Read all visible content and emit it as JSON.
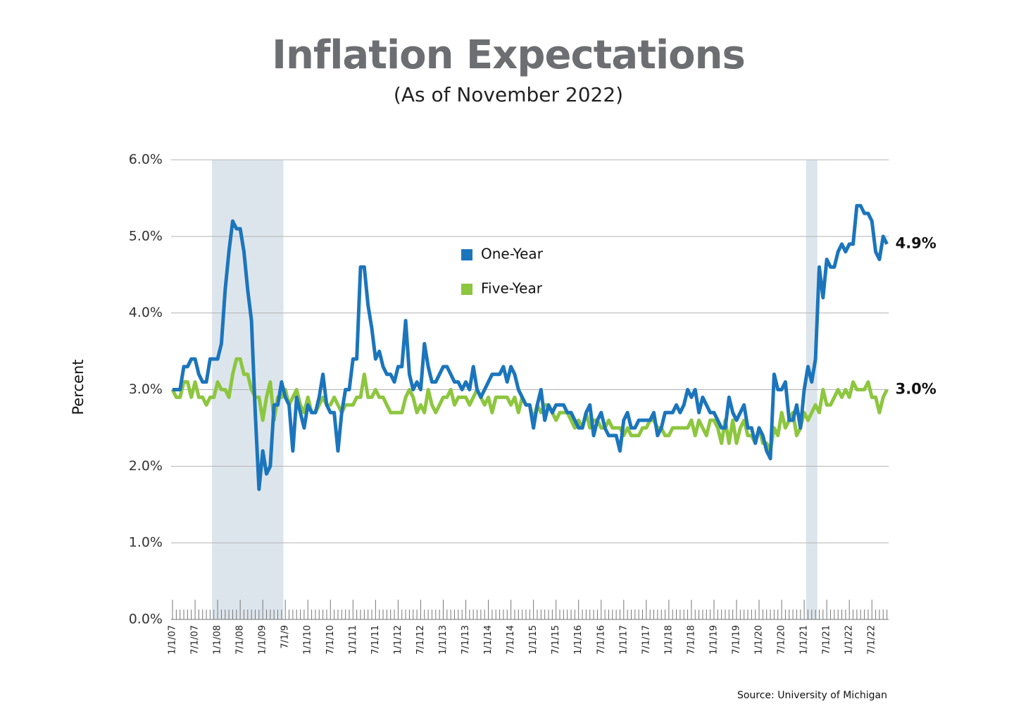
{
  "chart_data": {
    "type": "line",
    "title": "Inflation Expectations",
    "subtitle": "(As of November 2022)",
    "y_label": "Percent",
    "source": "Source: University of Michigan",
    "categories": [
      "1/1/07",
      null,
      null,
      null,
      null,
      null,
      "7/1/07",
      null,
      null,
      null,
      null,
      null,
      "1/1/08",
      null,
      null,
      null,
      null,
      null,
      "7/1/08",
      null,
      null,
      null,
      null,
      null,
      "1/1/09",
      null,
      null,
      null,
      null,
      null,
      "7/1/9",
      null,
      null,
      null,
      null,
      null,
      "1/1/10",
      null,
      null,
      null,
      null,
      null,
      "7/1/10",
      null,
      null,
      null,
      null,
      null,
      "1/1/11",
      null,
      null,
      null,
      null,
      null,
      "7/1/11",
      null,
      null,
      null,
      null,
      null,
      "1/1/12",
      null,
      null,
      null,
      null,
      null,
      "7/1/12",
      null,
      null,
      null,
      null,
      null,
      "1/1/13",
      null,
      null,
      null,
      null,
      null,
      "7/1/13",
      null,
      null,
      null,
      null,
      null,
      "1/1/14",
      null,
      null,
      null,
      null,
      null,
      "7/1/14",
      null,
      null,
      null,
      null,
      null,
      "1/1/15",
      null,
      null,
      null,
      null,
      null,
      "7/1/15",
      null,
      null,
      null,
      null,
      null,
      "1/1/16",
      null,
      null,
      null,
      null,
      null,
      "7/1/16",
      null,
      null,
      null,
      null,
      null,
      "1/1/17",
      null,
      null,
      null,
      null,
      null,
      "7/1/17",
      null,
      null,
      null,
      null,
      null,
      "1/1/18",
      null,
      null,
      null,
      null,
      null,
      "7/1/18",
      null,
      null,
      null,
      null,
      null,
      "1/1/19",
      null,
      null,
      null,
      null,
      null,
      "7/1/19",
      null,
      null,
      null,
      null,
      null,
      "1/1/20",
      null,
      null,
      null,
      null,
      null,
      "7/1/20",
      null,
      null,
      null,
      null,
      null,
      "1/1/21",
      null,
      null,
      null,
      null,
      null,
      "7/1/21",
      null,
      null,
      null,
      null,
      null,
      "1/1/22",
      null,
      null,
      null,
      null,
      null,
      "7/1/22",
      null,
      null,
      null,
      null
    ],
    "series": [
      {
        "name": "One-Year",
        "color": "#1b75bc",
        "values": [
          3.0,
          3.0,
          3.0,
          3.3,
          3.3,
          3.4,
          3.4,
          3.2,
          3.1,
          3.1,
          3.4,
          3.4,
          3.4,
          3.6,
          4.3,
          4.8,
          5.2,
          5.1,
          5.1,
          4.8,
          4.3,
          3.9,
          2.7,
          1.7,
          2.2,
          1.9,
          2.0,
          2.8,
          2.8,
          3.1,
          2.9,
          2.8,
          2.2,
          2.9,
          2.7,
          2.5,
          2.8,
          2.7,
          2.7,
          2.9,
          3.2,
          2.8,
          2.7,
          2.7,
          2.2,
          2.7,
          3.0,
          3.0,
          3.4,
          3.4,
          4.6,
          4.6,
          4.1,
          3.8,
          3.4,
          3.5,
          3.3,
          3.2,
          3.2,
          3.1,
          3.3,
          3.3,
          3.9,
          3.2,
          3.0,
          3.1,
          3.0,
          3.6,
          3.3,
          3.1,
          3.1,
          3.2,
          3.3,
          3.3,
          3.2,
          3.1,
          3.1,
          3.0,
          3.1,
          3.0,
          3.3,
          3.0,
          2.9,
          3.0,
          3.1,
          3.2,
          3.2,
          3.2,
          3.3,
          3.1,
          3.3,
          3.2,
          3.0,
          2.9,
          2.8,
          2.8,
          2.5,
          2.8,
          3.0,
          2.6,
          2.8,
          2.7,
          2.8,
          2.8,
          2.8,
          2.7,
          2.7,
          2.6,
          2.5,
          2.5,
          2.7,
          2.8,
          2.4,
          2.6,
          2.7,
          2.5,
          2.4,
          2.4,
          2.4,
          2.2,
          2.6,
          2.7,
          2.5,
          2.5,
          2.6,
          2.6,
          2.6,
          2.6,
          2.7,
          2.4,
          2.5,
          2.7,
          2.7,
          2.7,
          2.8,
          2.7,
          2.8,
          3.0,
          2.9,
          3.0,
          2.7,
          2.9,
          2.8,
          2.7,
          2.7,
          2.6,
          2.5,
          2.5,
          2.9,
          2.7,
          2.6,
          2.7,
          2.8,
          2.5,
          2.5,
          2.3,
          2.5,
          2.4,
          2.2,
          2.1,
          3.2,
          3.0,
          3.0,
          3.1,
          2.6,
          2.6,
          2.8,
          2.5,
          3.0,
          3.3,
          3.1,
          3.4,
          4.6,
          4.2,
          4.7,
          4.6,
          4.6,
          4.8,
          4.9,
          4.8,
          4.9,
          4.9,
          5.4,
          5.4,
          5.3,
          5.3,
          5.2,
          4.8,
          4.7,
          5.0,
          4.9
        ],
        "value_labels": [
          null,
          null,
          null,
          null,
          null,
          null,
          null,
          null,
          null,
          null,
          null,
          null,
          null,
          null,
          null,
          null,
          null,
          null,
          null,
          null,
          null,
          null,
          null,
          null,
          null,
          null,
          null,
          null,
          null,
          null,
          null,
          null,
          null,
          null,
          null,
          null,
          null,
          null,
          null,
          null,
          null,
          null,
          null,
          null,
          null,
          null,
          null,
          null,
          null,
          null,
          null,
          null,
          null,
          null,
          null,
          null,
          null,
          null,
          null,
          null,
          null,
          null,
          null,
          null,
          null,
          null,
          null,
          null,
          null,
          null,
          null,
          null,
          null,
          null,
          null,
          null,
          null,
          null,
          null,
          null,
          null,
          null,
          null,
          null,
          null,
          null,
          null,
          null,
          null,
          null,
          null,
          null,
          null,
          null,
          null,
          null,
          null,
          null,
          null,
          null,
          null,
          null,
          null,
          null,
          null,
          null,
          null,
          null,
          null,
          null,
          null,
          null,
          null,
          null,
          null,
          null,
          null,
          null,
          null,
          null,
          null,
          null,
          null,
          null,
          null,
          null,
          null,
          null,
          null,
          null,
          null,
          null,
          null,
          null,
          null,
          null,
          null,
          null,
          null,
          null,
          null,
          null,
          null,
          null,
          null,
          null,
          null,
          null,
          null,
          null,
          null,
          null,
          null,
          null,
          null,
          null,
          null,
          null,
          null,
          null,
          null,
          null,
          null,
          null,
          null,
          null,
          null,
          null,
          null,
          null,
          null,
          null,
          null,
          null,
          null,
          null,
          null,
          null,
          null,
          null,
          null,
          null,
          null,
          null,
          null,
          null,
          null,
          null,
          null,
          null,
          "4.9%"
        ]
      },
      {
        "name": "Five-Year",
        "color": "#8dc63f",
        "values": [
          3.0,
          2.9,
          2.9,
          3.1,
          3.1,
          2.9,
          3.1,
          2.9,
          2.9,
          2.8,
          2.9,
          2.9,
          3.1,
          3.0,
          3.0,
          2.9,
          3.2,
          3.4,
          3.4,
          3.2,
          3.2,
          3.0,
          2.9,
          2.9,
          2.6,
          2.9,
          3.1,
          2.6,
          2.9,
          2.9,
          3.0,
          2.8,
          2.9,
          3.0,
          2.8,
          2.7,
          2.9,
          2.7,
          2.7,
          2.8,
          2.9,
          2.8,
          2.8,
          2.9,
          2.8,
          2.7,
          2.8,
          2.8,
          2.8,
          2.9,
          2.9,
          3.2,
          2.9,
          2.9,
          3.0,
          2.9,
          2.9,
          2.8,
          2.7,
          2.7,
          2.7,
          2.7,
          2.9,
          3.0,
          2.9,
          2.7,
          2.8,
          2.7,
          3.0,
          2.8,
          2.7,
          2.8,
          2.9,
          2.9,
          3.0,
          2.8,
          2.9,
          2.9,
          2.9,
          2.8,
          2.9,
          3.0,
          2.9,
          2.8,
          2.9,
          2.7,
          2.9,
          2.9,
          2.9,
          2.9,
          2.8,
          2.9,
          2.7,
          2.9,
          2.8,
          2.8,
          2.6,
          2.8,
          2.7,
          2.8,
          2.8,
          2.7,
          2.6,
          2.7,
          2.7,
          2.7,
          2.6,
          2.5,
          2.6,
          2.5,
          2.7,
          2.5,
          2.6,
          2.6,
          2.5,
          2.5,
          2.6,
          2.5,
          2.5,
          2.5,
          2.4,
          2.5,
          2.4,
          2.4,
          2.4,
          2.5,
          2.5,
          2.6,
          2.6,
          2.5,
          2.5,
          2.4,
          2.4,
          2.5,
          2.5,
          2.5,
          2.5,
          2.5,
          2.6,
          2.4,
          2.6,
          2.5,
          2.4,
          2.6,
          2.6,
          2.5,
          2.3,
          2.6,
          2.3,
          2.6,
          2.3,
          2.5,
          2.6,
          2.4,
          2.4,
          2.3,
          2.5,
          2.3,
          2.3,
          2.2,
          2.5,
          2.4,
          2.7,
          2.5,
          2.6,
          2.7,
          2.4,
          2.5,
          2.7,
          2.6,
          2.7,
          2.8,
          2.7,
          3.0,
          2.8,
          2.8,
          2.9,
          3.0,
          2.9,
          3.0,
          2.9,
          3.1,
          3.0,
          3.0,
          3.0,
          3.1,
          2.9,
          2.9,
          2.7,
          2.9,
          3.0
        ],
        "value_labels": [
          null,
          null,
          null,
          null,
          null,
          null,
          null,
          null,
          null,
          null,
          null,
          null,
          null,
          null,
          null,
          null,
          null,
          null,
          null,
          null,
          null,
          null,
          null,
          null,
          null,
          null,
          null,
          null,
          null,
          null,
          null,
          null,
          null,
          null,
          null,
          null,
          null,
          null,
          null,
          null,
          null,
          null,
          null,
          null,
          null,
          null,
          null,
          null,
          null,
          null,
          null,
          null,
          null,
          null,
          null,
          null,
          null,
          null,
          null,
          null,
          null,
          null,
          null,
          null,
          null,
          null,
          null,
          null,
          null,
          null,
          null,
          null,
          null,
          null,
          null,
          null,
          null,
          null,
          null,
          null,
          null,
          null,
          null,
          null,
          null,
          null,
          null,
          null,
          null,
          null,
          null,
          null,
          null,
          null,
          null,
          null,
          null,
          null,
          null,
          null,
          null,
          null,
          null,
          null,
          null,
          null,
          null,
          null,
          null,
          null,
          null,
          null,
          null,
          null,
          null,
          null,
          null,
          null,
          null,
          null,
          null,
          null,
          null,
          null,
          null,
          null,
          null,
          null,
          null,
          null,
          null,
          null,
          null,
          null,
          null,
          null,
          null,
          null,
          null,
          null,
          null,
          null,
          null,
          null,
          null,
          null,
          null,
          null,
          null,
          null,
          null,
          null,
          null,
          null,
          null,
          null,
          null,
          null,
          null,
          null,
          null,
          null,
          null,
          null,
          null,
          null,
          null,
          null,
          null,
          null,
          null,
          null,
          null,
          null,
          null,
          null,
          null,
          null,
          null,
          null,
          null,
          null,
          null,
          null,
          null,
          null,
          null,
          null,
          null,
          null,
          "3.0%"
        ]
      }
    ],
    "shaded_ranges": [
      [
        11,
        29
      ],
      [
        169,
        171
      ]
    ],
    "shade_color": "#dde5ec",
    "ylim": [
      0,
      6
    ],
    "yticks": [
      {
        "value": 0,
        "label": "0.0%"
      },
      {
        "value": 1,
        "label": "1.0%"
      },
      {
        "value": 2,
        "label": "2.0%"
      },
      {
        "value": 3,
        "label": "3.0%"
      },
      {
        "value": 4,
        "label": "4.0%"
      },
      {
        "value": 5,
        "label": "5.0%"
      },
      {
        "value": 6,
        "label": "6.0%"
      }
    ],
    "grid": true,
    "legend": "top-center"
  }
}
